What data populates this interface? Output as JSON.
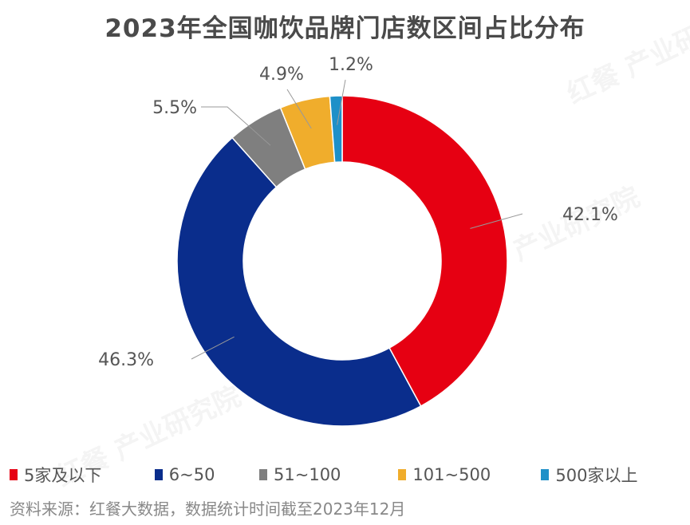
{
  "title": "2023年全国咖饮品牌门店数区间占比分布",
  "source": "资料来源：红餐大数据，数据统计时间截至2023年12月",
  "watermark": "红餐 产业研究院",
  "chart_data": {
    "type": "pie",
    "donut": true,
    "title": "2023年全国咖饮品牌门店数区间占比分布",
    "categories": [
      "5家及以下",
      "6~50",
      "51~100",
      "101~500",
      "500家以上"
    ],
    "values": [
      42.1,
      46.3,
      5.5,
      4.9,
      1.2
    ],
    "labels": [
      "42.1%",
      "46.3%",
      "5.5%",
      "4.9%",
      "1.2%"
    ],
    "colors": [
      "#e60012",
      "#0a2d8c",
      "#7f7f7f",
      "#f0ad2c",
      "#1e90c8"
    ],
    "legend_position": "bottom"
  }
}
